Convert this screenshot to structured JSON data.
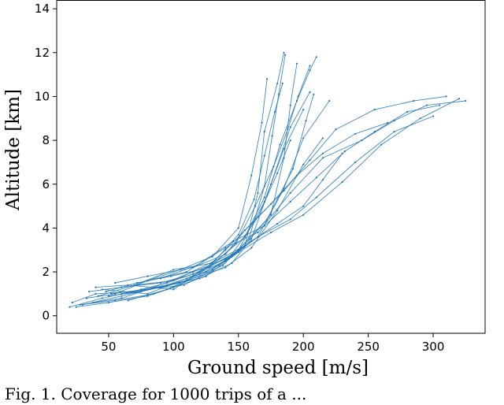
{
  "chart_data": {
    "type": "scatter",
    "title": "",
    "xlabel": "Ground speed [m/s]",
    "ylabel": "Altitude [km]",
    "xlim": [
      10,
      340
    ],
    "ylim": [
      -0.8,
      14.4
    ],
    "xticks": [
      50,
      100,
      150,
      200,
      250,
      300
    ],
    "yticks": [
      0,
      2,
      4,
      6,
      8,
      10,
      12,
      14
    ],
    "grid": false,
    "legend": "none",
    "series": [
      {
        "color": "#1f77b4",
        "trajectories": [
          {
            "x": [
              20,
              45,
              75,
              95,
              120,
              145,
              165,
              180,
              190
            ],
            "y": [
              0.4,
              0.8,
              1.2,
              1.5,
              2.0,
              2.8,
              4.5,
              6.5,
              8.0
            ]
          },
          {
            "x": [
              25,
              50,
              80,
              100,
              130,
              150,
              170,
              185,
              200
            ],
            "y": [
              0.4,
              0.6,
              0.9,
              1.3,
              2.1,
              3.0,
              5.2,
              7.6,
              9.4
            ]
          },
          {
            "x": [
              30,
              60,
              95,
              120,
              145,
              160,
              175,
              190,
              205
            ],
            "y": [
              0.5,
              0.9,
              1.4,
              1.7,
              2.4,
              3.5,
              6.0,
              8.6,
              10.2
            ]
          },
          {
            "x": [
              22,
              40,
              70,
              110,
              140,
              160,
              180,
              200,
              215
            ],
            "y": [
              0.6,
              1.0,
              1.1,
              1.6,
              2.2,
              3.1,
              4.8,
              6.9,
              8.1
            ]
          },
          {
            "x": [
              35,
              60,
              90,
              115,
              140,
              165,
              185,
              200,
              220
            ],
            "y": [
              1.1,
              1.3,
              1.5,
              1.9,
              2.6,
              3.6,
              5.8,
              8.1,
              9.8
            ]
          },
          {
            "x": [
              28,
              55,
              85,
              125,
              150,
              175,
              185,
              190,
              195
            ],
            "y": [
              0.5,
              0.7,
              1.0,
              1.8,
              2.9,
              4.6,
              7.2,
              9.6,
              11.5
            ]
          },
          {
            "x": [
              40,
              65,
              100,
              130,
              155,
              165,
              170,
              180,
              185
            ],
            "y": [
              1.3,
              1.4,
              1.2,
              2.4,
              3.2,
              5.6,
              8.4,
              10.6,
              12.0
            ]
          },
          {
            "x": [
              50,
              75,
              105,
              135,
              160,
              180,
              200,
              215,
              230
            ],
            "y": [
              0.9,
              1.1,
              1.5,
              2.3,
              3.4,
              4.2,
              5.0,
              6.2,
              7.4
            ]
          },
          {
            "x": [
              45,
              80,
              110,
              140,
              165,
              190,
              210,
              240,
              270,
              300
            ],
            "y": [
              1.2,
              1.0,
              1.7,
              2.5,
              3.6,
              4.4,
              5.4,
              7.0,
              8.4,
              9.1
            ]
          },
          {
            "x": [
              60,
              90,
              125,
              150,
              175,
              200,
              230,
              260,
              290,
              320
            ],
            "y": [
              1.0,
              1.3,
              2.0,
              2.9,
              3.8,
              4.6,
              6.1,
              7.8,
              9.0,
              9.9
            ]
          },
          {
            "x": [
              70,
              100,
              135,
              155,
              170,
              182,
              195,
              205,
              210
            ],
            "y": [
              1.4,
              1.6,
              2.6,
              3.6,
              5.4,
              7.8,
              9.8,
              11.2,
              11.8
            ]
          },
          {
            "x": [
              33,
              55,
              80,
              105,
              130,
              150,
              160,
              168,
              172
            ],
            "y": [
              0.8,
              1.0,
              1.6,
              2.1,
              2.7,
              4.0,
              6.4,
              8.8,
              10.8
            ]
          },
          {
            "x": [
              55,
              80,
              115,
              140,
              155,
              175,
              195,
              215,
              240,
              265
            ],
            "y": [
              1.5,
              1.8,
              2.2,
              2.8,
              3.9,
              5.1,
              6.4,
              7.4,
              8.3,
              8.8
            ]
          },
          {
            "x": [
              65,
              95,
              120,
              140,
              160,
              185,
              205,
              225,
              255,
              285,
              310
            ],
            "y": [
              0.7,
              1.2,
              1.9,
              3.0,
              4.2,
              5.7,
              7.1,
              8.5,
              9.4,
              9.8,
              10.0
            ]
          },
          {
            "x": [
              48,
              72,
              98,
              128,
              148,
              163,
              177,
              188,
              196,
              205
            ],
            "y": [
              1.1,
              1.5,
              1.8,
              2.2,
              3.3,
              5.0,
              6.8,
              8.5,
              10.0,
              11.4
            ]
          },
          {
            "x": [
              42,
              70,
              100,
              130,
              150,
              162,
              170,
              178,
              184
            ],
            "y": [
              0.9,
              1.4,
              2.1,
              2.4,
              3.7,
              5.3,
              7.3,
              9.3,
              10.6
            ]
          },
          {
            "x": [
              80,
              110,
              140,
              165,
              190,
              215,
              245,
              270,
              295,
              325
            ],
            "y": [
              1.6,
              2.0,
              3.1,
              3.8,
              5.6,
              7.2,
              8.0,
              8.9,
              9.6,
              9.8
            ]
          },
          {
            "x": [
              38,
              60,
              85,
              115,
              145,
              172,
              192,
              202,
              208
            ],
            "y": [
              0.6,
              0.8,
              1.3,
              2.0,
              2.7,
              4.4,
              6.7,
              8.9,
              10.1
            ]
          },
          {
            "x": [
              52,
              78,
              108,
              138,
              158,
              170,
              176,
              181,
              186
            ],
            "y": [
              1.0,
              1.2,
              1.4,
              2.3,
              3.5,
              5.9,
              8.2,
              10.1,
              11.9
            ]
          },
          {
            "x": [
              90,
              118,
              146,
              170,
              190,
              210,
              232,
              255,
              280,
              305
            ],
            "y": [
              1.7,
              2.3,
              3.4,
              4.1,
              5.2,
              6.3,
              7.5,
              8.4,
              9.3,
              9.6
            ]
          }
        ]
      }
    ],
    "caption": "Fig. 1.  Coverage for 1000 trips of a ..."
  }
}
